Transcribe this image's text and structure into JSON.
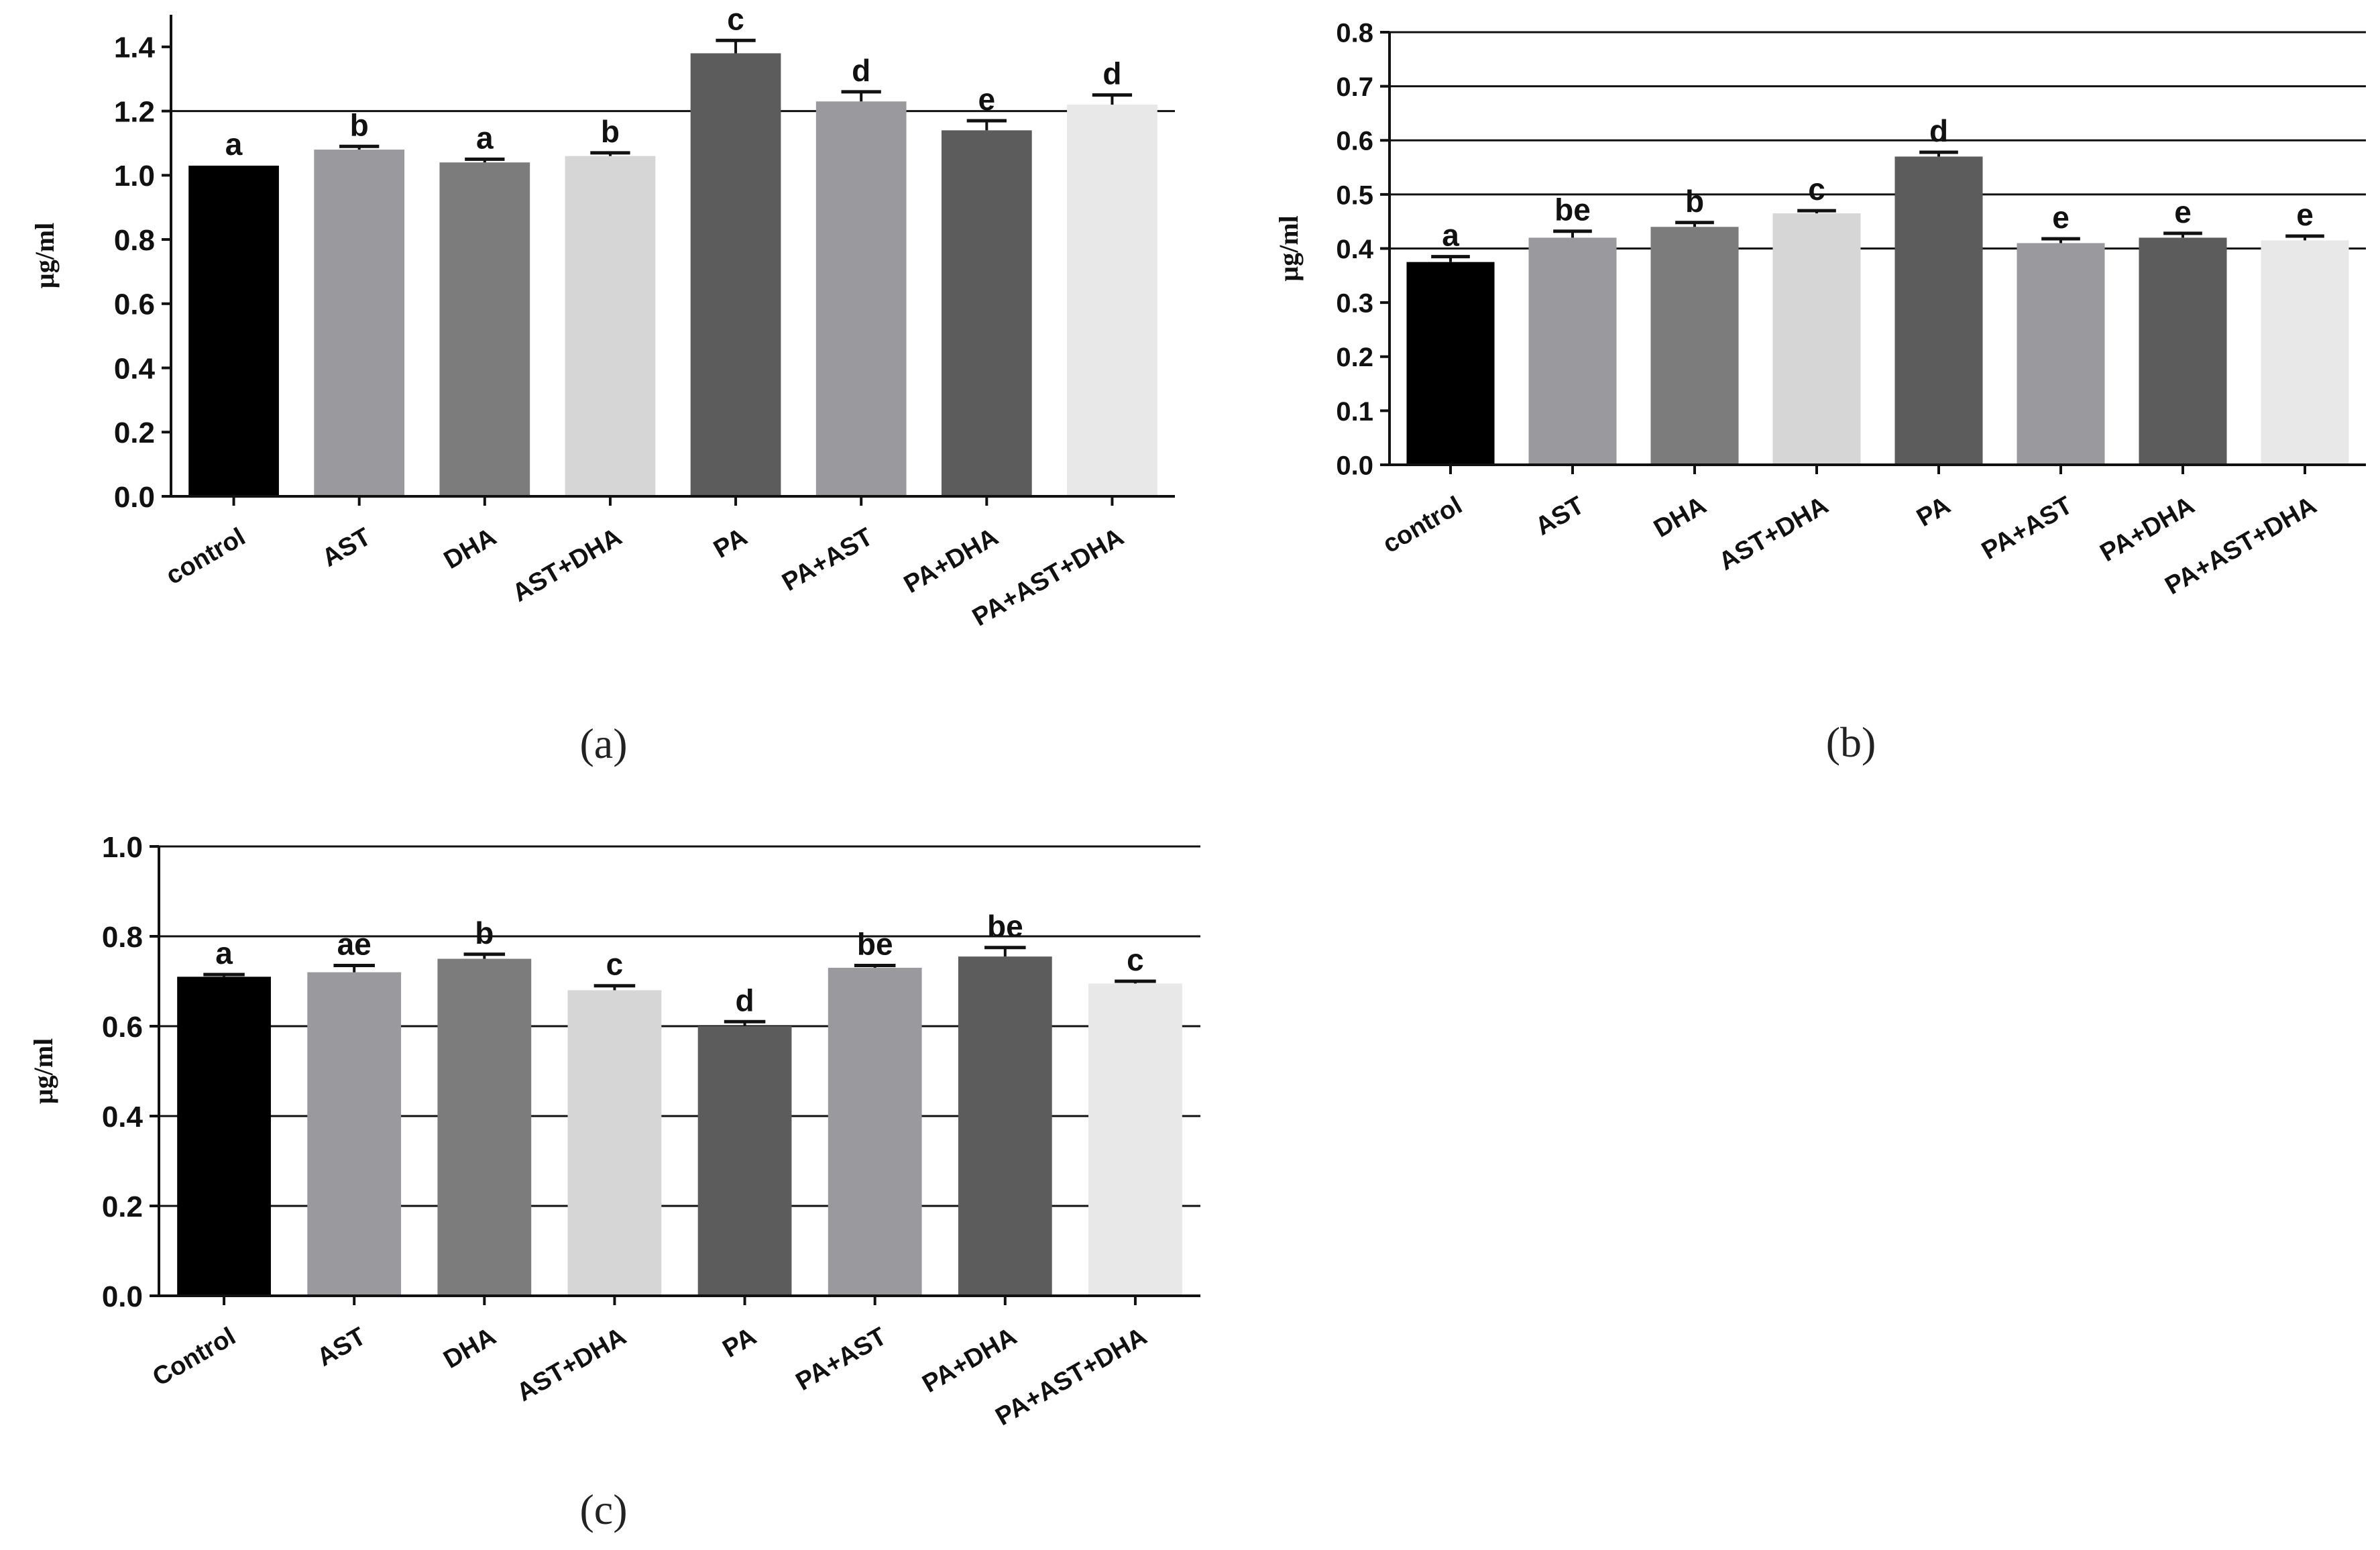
{
  "chart_data": [
    {
      "type": "bar",
      "panel_label": "(a)",
      "ylabel": "µg/ml",
      "ylim": [
        0,
        1.5
      ],
      "yticks": [
        "0.0",
        "0.2",
        "0.4",
        "0.6",
        "0.8",
        "1.0",
        "1.2",
        "1.4"
      ],
      "ytick_values": [
        0,
        0.2,
        0.4,
        0.6,
        0.8,
        1.0,
        1.2,
        1.4
      ],
      "gridlines": [
        1.2
      ],
      "categories": [
        "control",
        "AST",
        "DHA",
        "AST+DHA",
        "PA",
        "PA+AST",
        "PA+DHA",
        "PA+AST+DHA"
      ],
      "values": [
        1.03,
        1.08,
        1.04,
        1.06,
        1.38,
        1.23,
        1.14,
        1.22
      ],
      "errors": [
        0.0,
        0.01,
        0.01,
        0.01,
        0.04,
        0.03,
        0.03,
        0.03
      ],
      "significance": [
        "a",
        "b",
        "a",
        "b",
        "c",
        "d",
        "e",
        "d"
      ],
      "colors": [
        "#000000",
        "#9a9a9e",
        "#7c7c7c",
        "#d6d6d6",
        "#5c5c5c",
        "#9a9a9e",
        "#5c5c5c",
        "#e8e8e8"
      ]
    },
    {
      "type": "bar",
      "panel_label": "(b)",
      "ylabel": "µg/ml",
      "ylim": [
        0,
        0.8
      ],
      "yticks": [
        "0.0",
        "0.1",
        "0.2",
        "0.3",
        "0.4",
        "0.5",
        "0.6",
        "0.7",
        "0.8"
      ],
      "ytick_values": [
        0,
        0.1,
        0.2,
        0.3,
        0.4,
        0.5,
        0.6,
        0.7,
        0.8
      ],
      "gridlines": [
        0.4,
        0.5,
        0.6,
        0.7,
        0.8
      ],
      "categories": [
        "control",
        "AST",
        "DHA",
        "AST+DHA",
        "PA",
        "PA+AST",
        "PA+DHA",
        "PA+AST+DHA"
      ],
      "values": [
        0.375,
        0.42,
        0.44,
        0.465,
        0.57,
        0.41,
        0.42,
        0.415
      ],
      "errors": [
        0.01,
        0.012,
        0.008,
        0.005,
        0.008,
        0.008,
        0.008,
        0.008
      ],
      "significance": [
        "a",
        "be",
        "b",
        "c",
        "d",
        "e",
        "e",
        "e"
      ],
      "colors": [
        "#000000",
        "#9a9a9e",
        "#7c7c7c",
        "#d6d6d6",
        "#5c5c5c",
        "#9a9a9e",
        "#5c5c5c",
        "#e8e8e8"
      ]
    },
    {
      "type": "bar",
      "panel_label": "(c)",
      "ylabel": "µg/ml",
      "ylim": [
        0,
        1.0
      ],
      "yticks": [
        "0.0",
        "0.2",
        "0.4",
        "0.6",
        "0.8",
        "1.0"
      ],
      "ytick_values": [
        0,
        0.2,
        0.4,
        0.6,
        0.8,
        1.0
      ],
      "gridlines": [
        0.2,
        0.4,
        0.6,
        0.8,
        1.0
      ],
      "categories": [
        "Control",
        "AST",
        "DHA",
        "AST+DHA",
        "PA",
        "PA+AST",
        "PA+DHA",
        "PA+AST+DHA"
      ],
      "values": [
        0.71,
        0.72,
        0.75,
        0.68,
        0.6,
        0.73,
        0.755,
        0.695
      ],
      "errors": [
        0.005,
        0.015,
        0.01,
        0.01,
        0.01,
        0.005,
        0.02,
        0.005
      ],
      "significance": [
        "a",
        "ae",
        "b",
        "c",
        "d",
        "be",
        "be",
        "c"
      ],
      "colors": [
        "#000000",
        "#9a9a9e",
        "#7c7c7c",
        "#d6d6d6",
        "#5c5c5c",
        "#9a9a9e",
        "#5c5c5c",
        "#e8e8e8"
      ]
    }
  ]
}
